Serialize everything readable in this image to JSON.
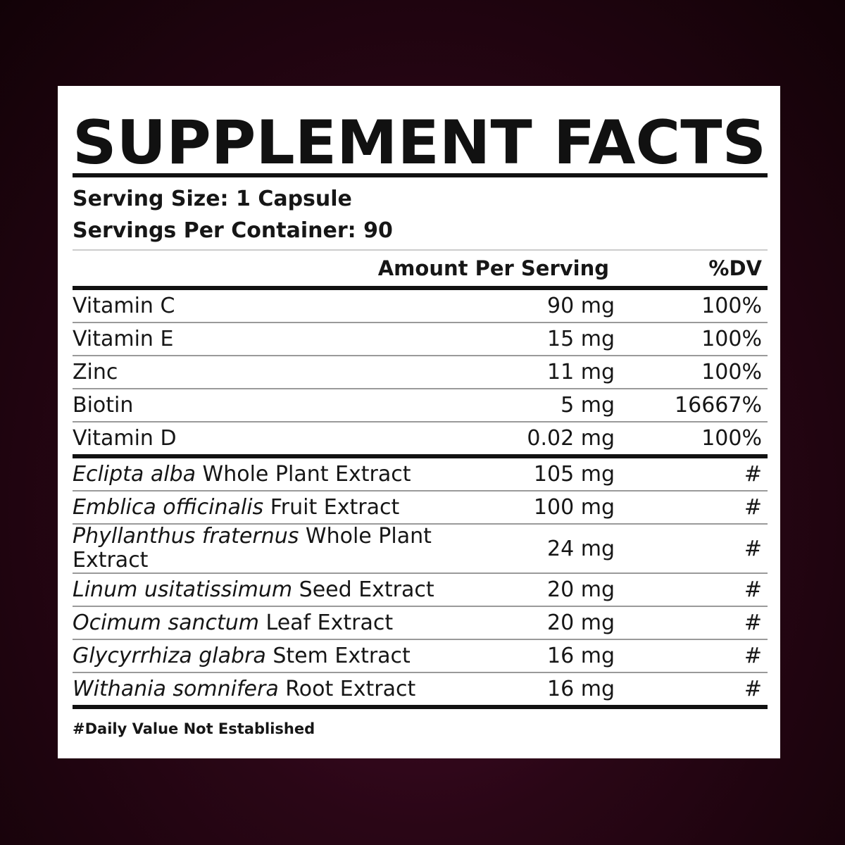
{
  "header": {
    "title": "SUPPLEMENT FACTS",
    "serving_size": "Serving Size: 1 Capsule",
    "servings_per_container": "Servings Per Container: 90"
  },
  "columns": {
    "amount": "Amount Per Serving",
    "dv": "%DV"
  },
  "vitamins": [
    {
      "name": "Vitamin C",
      "amount": "90 mg",
      "dv": "100%"
    },
    {
      "name": "Vitamin E",
      "amount": "15 mg",
      "dv": "100%"
    },
    {
      "name": "Zinc",
      "amount": "11 mg",
      "dv": "100%"
    },
    {
      "name": "Biotin",
      "amount": "5 mg",
      "dv": "16667%"
    },
    {
      "name": "Vitamin D",
      "amount": "0.02 mg",
      "dv": "100%"
    }
  ],
  "botanicals": [
    {
      "latin": "Eclipta alba",
      "part": "Whole Plant Extract",
      "amount": "105 mg",
      "dv": "#"
    },
    {
      "latin": "Emblica officinalis",
      "part": "Fruit Extract",
      "amount": "100 mg",
      "dv": "#"
    },
    {
      "latin": "Phyllanthus fraternus",
      "part": "Whole Plant Extract",
      "amount": "24 mg",
      "dv": "#"
    },
    {
      "latin": "Linum usitatissimum",
      "part": "Seed Extract",
      "amount": "20 mg",
      "dv": "#"
    },
    {
      "latin": "Ocimum sanctum",
      "part": "Leaf Extract",
      "amount": "20 mg",
      "dv": "#"
    },
    {
      "latin": "Glycyrrhiza glabra",
      "part": "Stem Extract",
      "amount": "16 mg",
      "dv": "#"
    },
    {
      "latin": "Withania somnifera",
      "part": "Root Extract",
      "amount": "16 mg",
      "dv": "#"
    }
  ],
  "footnote": "#Daily Value Not Established"
}
